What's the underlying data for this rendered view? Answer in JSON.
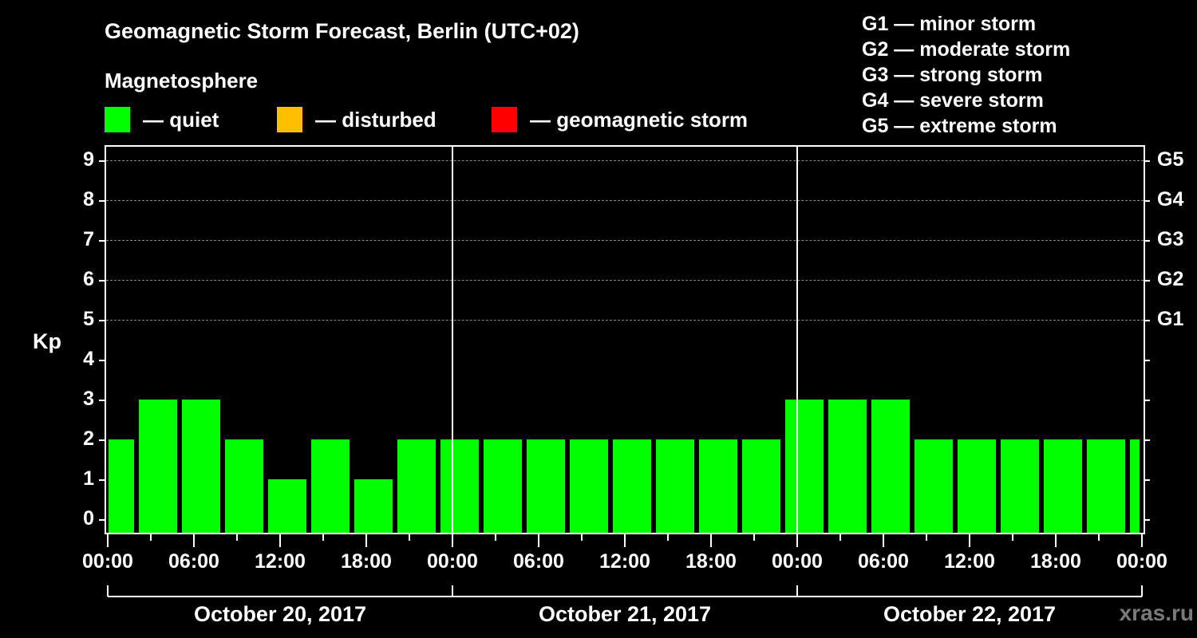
{
  "header": {
    "title": "Geomagnetic Storm Forecast, Berlin (UTC+02)",
    "subtitle": "Magnetosphere"
  },
  "legend": {
    "items": [
      {
        "label": "— quiet",
        "color": "#00ff00"
      },
      {
        "label": "— disturbed",
        "color": "#ffbf00"
      },
      {
        "label": "— geomagnetic storm",
        "color": "#ff0000"
      }
    ]
  },
  "g_scale": [
    "G1 — minor storm",
    "G2 — moderate storm",
    "G3 — strong storm",
    "G4 — severe storm",
    "G5 — extreme storm"
  ],
  "watermark": "xras.ru",
  "chart_data": {
    "type": "bar",
    "title": "Geomagnetic Storm Forecast, Berlin (UTC+02)",
    "subtitle": "Magnetosphere",
    "ylabel": "Kp",
    "xlabel": "",
    "ylim": [
      0,
      9
    ],
    "yticks": [
      0,
      1,
      2,
      3,
      4,
      5,
      6,
      7,
      8,
      9
    ],
    "y2_ticks": [
      {
        "kp": 5,
        "label": "G1"
      },
      {
        "kp": 6,
        "label": "G2"
      },
      {
        "kp": 7,
        "label": "G3"
      },
      {
        "kp": 8,
        "label": "G4"
      },
      {
        "kp": 9,
        "label": "G5"
      }
    ],
    "grid": "dashed horizontal at Kp 5-9",
    "xtick_labels": [
      "00:00",
      "06:00",
      "12:00",
      "18:00",
      "00:00",
      "06:00",
      "12:00",
      "18:00",
      "00:00",
      "06:00",
      "12:00",
      "18:00",
      "00:00"
    ],
    "days": [
      "October 20, 2017",
      "October 21, 2017",
      "October 22, 2017"
    ],
    "categories": [
      "Oct 20 00:00",
      "Oct 20 03:00",
      "Oct 20 06:00",
      "Oct 20 09:00",
      "Oct 20 12:00",
      "Oct 20 15:00",
      "Oct 20 18:00",
      "Oct 20 21:00",
      "Oct 21 00:00",
      "Oct 21 03:00",
      "Oct 21 06:00",
      "Oct 21 09:00",
      "Oct 21 12:00",
      "Oct 21 15:00",
      "Oct 21 18:00",
      "Oct 21 21:00",
      "Oct 22 00:00",
      "Oct 22 03:00",
      "Oct 22 06:00",
      "Oct 22 09:00",
      "Oct 22 12:00",
      "Oct 22 15:00",
      "Oct 22 18:00",
      "Oct 22 21:00",
      "Oct 23 00:00"
    ],
    "values": [
      2,
      3,
      3,
      2,
      1,
      2,
      1,
      2,
      2,
      2,
      2,
      2,
      2,
      2,
      2,
      2,
      3,
      3,
      3,
      2,
      2,
      2,
      2,
      2,
      2
    ],
    "bar_color": "#00ff00",
    "legend": [
      "quiet",
      "disturbed",
      "geomagnetic storm"
    ]
  }
}
